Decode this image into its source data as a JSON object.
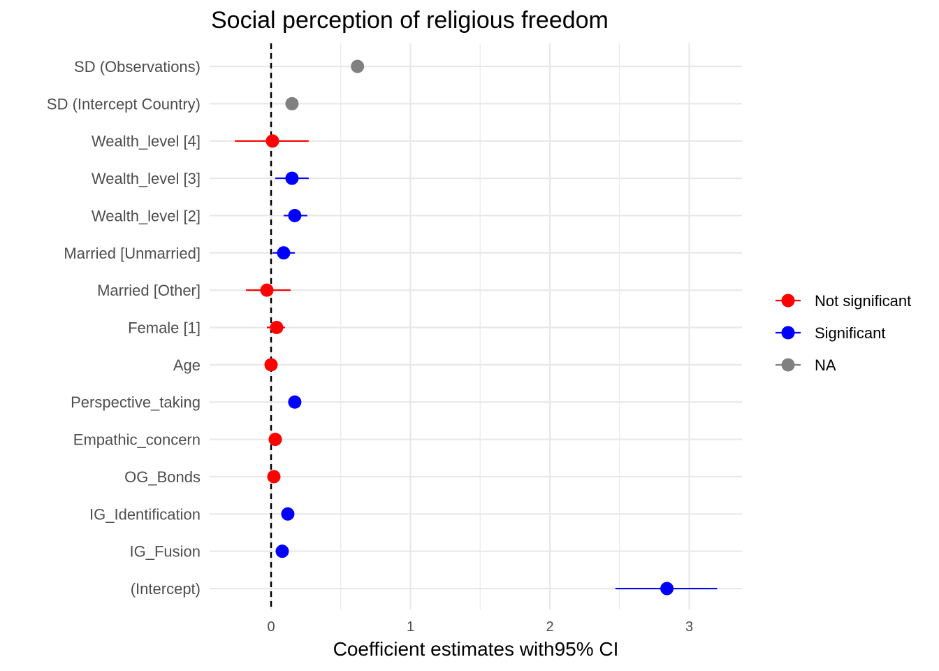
{
  "chart_data": {
    "type": "scatter",
    "subtype": "forest-plot with 95% CI error bars",
    "title": "Social perception of religious freedom",
    "xlabel": "Coefficient estimates with95% CI",
    "ylabel": "",
    "xlim": [
      -0.44,
      3.38
    ],
    "xticks": [
      0,
      1,
      2,
      3
    ],
    "reference_line": {
      "x": 0,
      "style": "dashed",
      "color": "#000000"
    },
    "grid": true,
    "legend": {
      "position": "right",
      "entries": [
        {
          "label": "Not significant",
          "color": "#ff0000"
        },
        {
          "label": "Significant",
          "color": "#0000ff"
        },
        {
          "label": "NA",
          "color": "#808080"
        }
      ]
    },
    "terms": [
      {
        "label": "SD (Observations)",
        "estimate": 0.62,
        "low": null,
        "high": null,
        "group": "NA"
      },
      {
        "label": "SD (Intercept Country)",
        "estimate": 0.15,
        "low": null,
        "high": null,
        "group": "NA"
      },
      {
        "label": "Wealth_level [4]",
        "estimate": 0.01,
        "low": -0.26,
        "high": 0.27,
        "group": "Not significant"
      },
      {
        "label": "Wealth_level [3]",
        "estimate": 0.15,
        "low": 0.03,
        "high": 0.27,
        "group": "Significant"
      },
      {
        "label": "Wealth_level [2]",
        "estimate": 0.17,
        "low": 0.09,
        "high": 0.26,
        "group": "Significant"
      },
      {
        "label": "Married [Unmarried]",
        "estimate": 0.09,
        "low": 0.01,
        "high": 0.17,
        "group": "Significant"
      },
      {
        "label": "Married [Other]",
        "estimate": -0.03,
        "low": -0.18,
        "high": 0.14,
        "group": "Not significant"
      },
      {
        "label": "Female [1]",
        "estimate": 0.04,
        "low": -0.03,
        "high": 0.1,
        "group": "Not significant"
      },
      {
        "label": "Age",
        "estimate": 0.0,
        "low": null,
        "high": null,
        "group": "Not significant"
      },
      {
        "label": "Perspective_taking",
        "estimate": 0.17,
        "low": null,
        "high": null,
        "group": "Significant"
      },
      {
        "label": "Empathic_concern",
        "estimate": 0.03,
        "low": null,
        "high": null,
        "group": "Not significant"
      },
      {
        "label": "OG_Bonds",
        "estimate": 0.02,
        "low": null,
        "high": null,
        "group": "Not significant"
      },
      {
        "label": "IG_Identification",
        "estimate": 0.12,
        "low": null,
        "high": null,
        "group": "Significant"
      },
      {
        "label": "IG_Fusion",
        "estimate": 0.08,
        "low": null,
        "high": null,
        "group": "Significant"
      },
      {
        "label": "(Intercept)",
        "estimate": 2.84,
        "low": 2.47,
        "high": 3.2,
        "group": "Significant"
      }
    ]
  }
}
